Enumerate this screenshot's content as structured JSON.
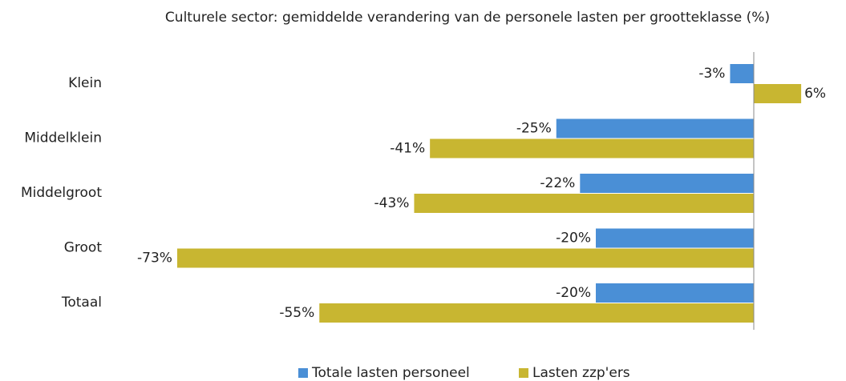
{
  "chart_data": {
    "type": "bar",
    "orientation": "horizontal",
    "title": "Culturele sector: gemiddelde verandering van de personele lasten per grootteklasse (%)",
    "categories": [
      "Klein",
      "Middelklein",
      "Middelgroot",
      "Groot",
      "Totaal"
    ],
    "series": [
      {
        "name": "Totale lasten personeel",
        "color": "#4a8fd6",
        "values": [
          -3,
          -25,
          -22,
          -20,
          -20
        ],
        "value_labels": [
          "-3%",
          "-25%",
          "-22%",
          "-20%",
          "-20%"
        ]
      },
      {
        "name": "Lasten zzp'ers",
        "color": "#c8b631",
        "values": [
          6,
          -41,
          -43,
          -73,
          -55
        ],
        "value_labels": [
          "6%",
          "-41%",
          "-43%",
          "-73%",
          "-55%"
        ]
      }
    ],
    "xlim": [
      -80,
      10
    ],
    "grid": false,
    "legend": "bottom"
  }
}
